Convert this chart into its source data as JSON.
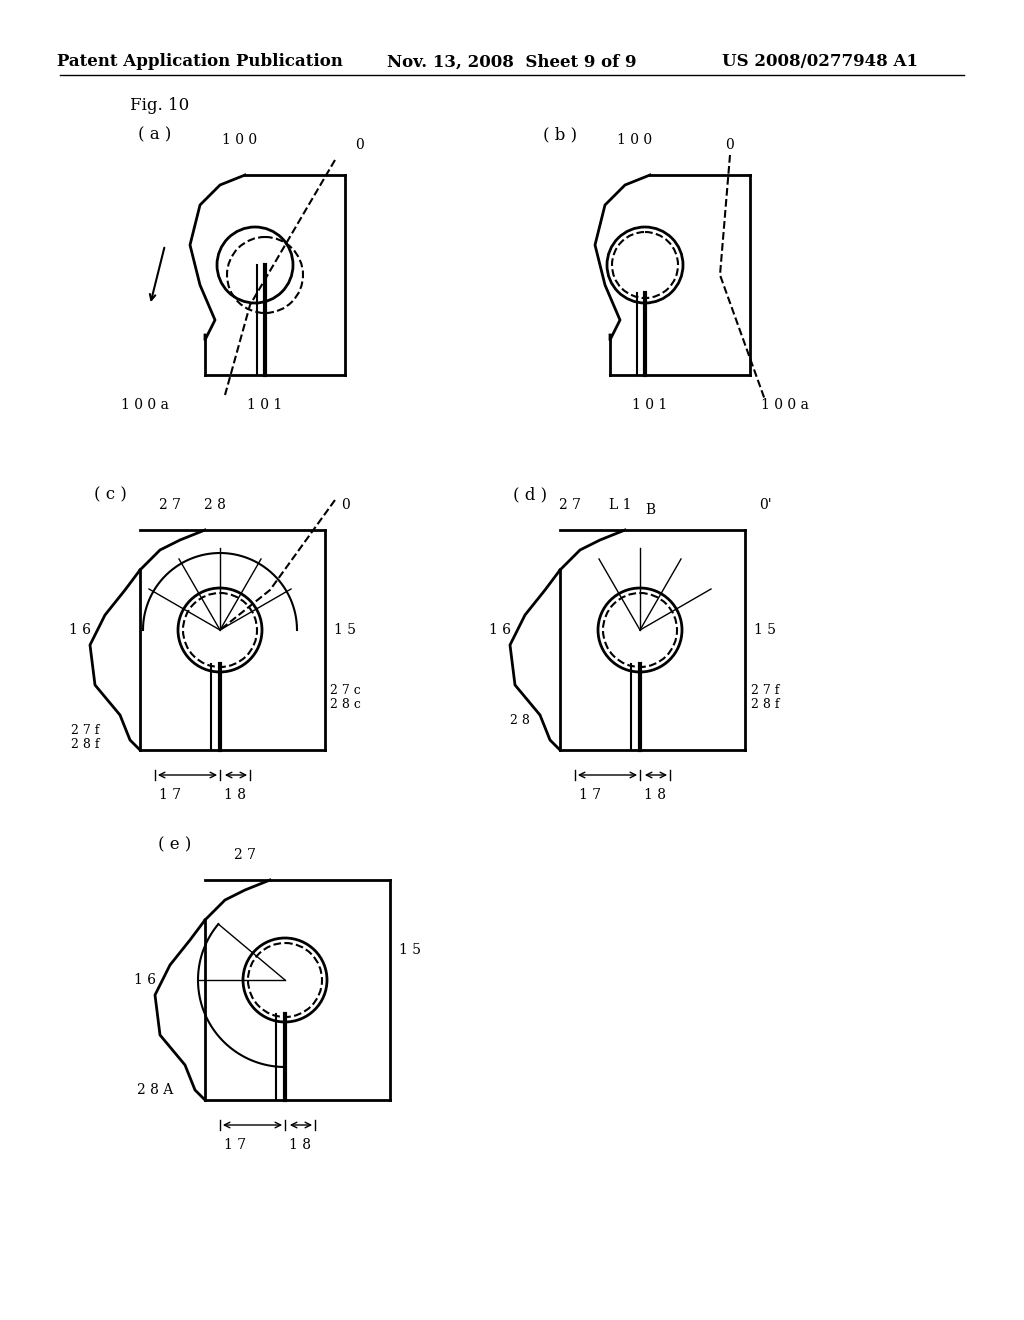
{
  "title_left": "Patent Application Publication",
  "title_mid": "Nov. 13, 2008  Sheet 9 of 9",
  "title_right": "US 2008/0277948 A1",
  "fig_label": "Fig. 10",
  "background": "#ffffff",
  "line_color": "#000000",
  "dashed_color": "#000000",
  "panels": [
    "(a)",
    "(b)",
    "(c)",
    "(d)",
    "(e)"
  ],
  "labels_a": [
    "100",
    "0",
    "100a",
    "101"
  ],
  "labels_b": [
    "100",
    "0",
    "100a",
    "101"
  ],
  "labels_c": [
    "27",
    "28",
    "0",
    "16",
    "15",
    "27c",
    "28c",
    "27f",
    "28f",
    "17",
    "18"
  ],
  "labels_d": [
    "27",
    "L1",
    "B",
    "0'",
    "16",
    "15",
    "27f",
    "28f",
    "28",
    "17",
    "18"
  ],
  "labels_e": [
    "27",
    "16",
    "15",
    "28A",
    "17",
    "18"
  ]
}
